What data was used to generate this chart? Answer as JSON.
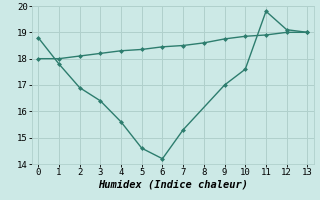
{
  "line1_x": [
    0,
    1,
    2,
    3,
    4,
    5,
    6,
    7,
    9,
    10,
    11,
    12,
    13
  ],
  "line1_y": [
    18.8,
    17.8,
    16.9,
    16.4,
    15.6,
    14.6,
    14.2,
    15.3,
    17.0,
    17.6,
    19.8,
    19.1,
    19.0
  ],
  "line2_x": [
    0,
    1,
    2,
    3,
    4,
    5,
    6,
    7,
    8,
    9,
    10,
    11,
    12,
    13
  ],
  "line2_y": [
    18.0,
    18.0,
    18.1,
    18.2,
    18.3,
    18.35,
    18.45,
    18.5,
    18.6,
    18.75,
    18.85,
    18.9,
    19.0,
    19.0
  ],
  "line_color": "#2d7d6e",
  "bg_color": "#cce9e6",
  "grid_color": "#b0d0cc",
  "xlabel": "Humidex (Indice chaleur)",
  "ylim": [
    14,
    20
  ],
  "xlim": [
    -0.3,
    13.3
  ],
  "yticks": [
    14,
    15,
    16,
    17,
    18,
    19,
    20
  ],
  "xticks": [
    0,
    1,
    2,
    3,
    4,
    5,
    6,
    7,
    8,
    9,
    10,
    11,
    12,
    13
  ],
  "xlabel_fontsize": 7.5,
  "tick_fontsize": 6.5
}
